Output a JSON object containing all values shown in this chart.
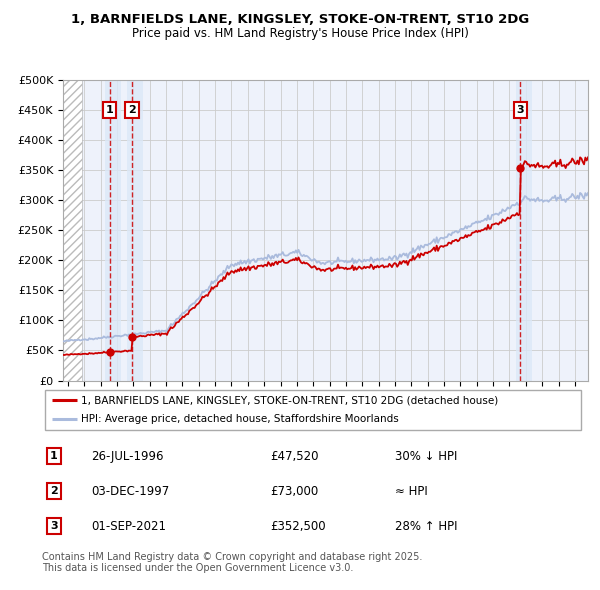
{
  "title_line1": "1, BARNFIELDS LANE, KINGSLEY, STOKE-ON-TRENT, ST10 2DG",
  "title_line2": "Price paid vs. HM Land Registry's House Price Index (HPI)",
  "ylim": [
    0,
    500000
  ],
  "yticks": [
    0,
    50000,
    100000,
    150000,
    200000,
    250000,
    300000,
    350000,
    400000,
    450000,
    500000
  ],
  "ytick_labels": [
    "£0",
    "£50K",
    "£100K",
    "£150K",
    "£200K",
    "£250K",
    "£300K",
    "£350K",
    "£400K",
    "£450K",
    "£500K"
  ],
  "xlim_start": 1993.7,
  "xlim_end": 2025.8,
  "sales": [
    {
      "date_str": "26-JUL-1996",
      "year": 1996.56,
      "price": 47520,
      "label": "1",
      "pct": "30% ↓ HPI"
    },
    {
      "date_str": "03-DEC-1997",
      "year": 1997.92,
      "price": 73000,
      "label": "2",
      "pct": "≈ HPI"
    },
    {
      "date_str": "01-SEP-2021",
      "year": 2021.67,
      "price": 352500,
      "label": "3",
      "pct": "28% ↑ HPI"
    }
  ],
  "sale_color": "#cc0000",
  "hpi_color": "#aabbdd",
  "grid_color": "#cccccc",
  "legend_label_red": "1, BARNFIELDS LANE, KINGSLEY, STOKE-ON-TRENT, ST10 2DG (detached house)",
  "legend_label_blue": "HPI: Average price, detached house, Staffordshire Moorlands",
  "footer": "Contains HM Land Registry data © Crown copyright and database right 2025.\nThis data is licensed under the Open Government Licence v3.0.",
  "background_color": "#ffffff",
  "plot_bg_color": "#eef2fb"
}
